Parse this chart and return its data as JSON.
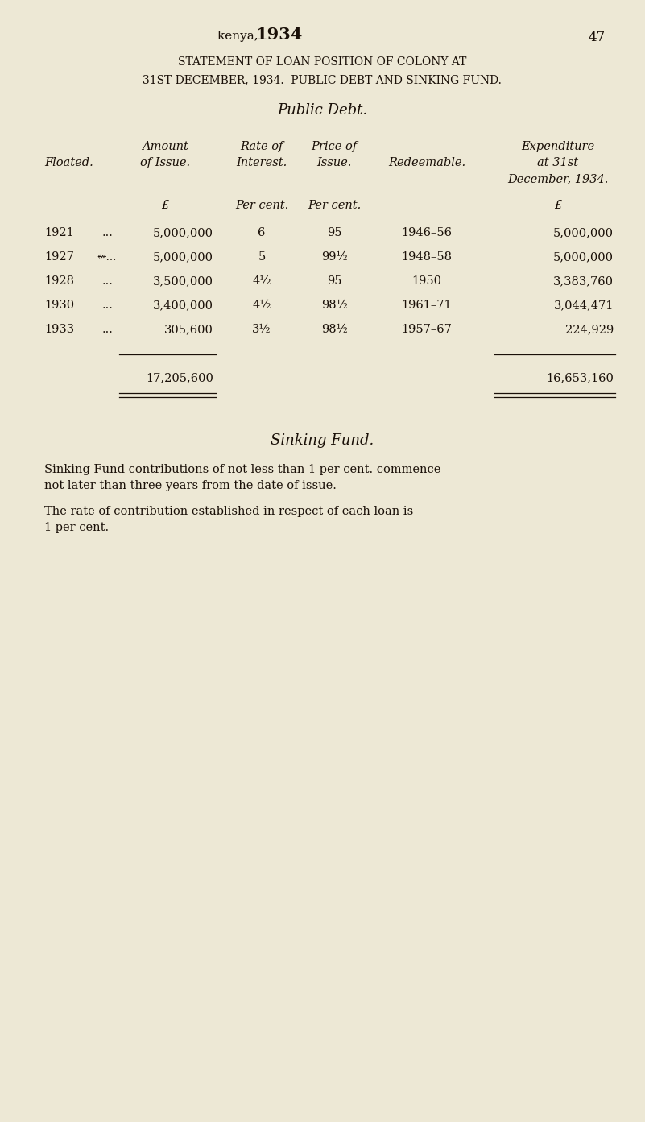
{
  "bg_color": "#ede8d5",
  "text_color": "#1a1008",
  "page_header_normal": "kenya, ",
  "page_header_bold": "1934",
  "page_header_num": "47",
  "title_line1": "Statement of Loan Position of Colony at",
  "title_line2": "31st December, 1934.  Public Debt and Sinking Fund.",
  "subtitle": "Public Debt.",
  "col_floated_label": "Floated.",
  "col_amount_label1": "Amount",
  "col_amount_label2": "of Issue.",
  "col_rate_label1": "Rate of",
  "col_rate_label2": "Interest.",
  "col_price_label1": "Price of",
  "col_price_label2": "Issue.",
  "col_redeemable_label": "Redeemable.",
  "col_exp_label1": "Expenditure",
  "col_exp_label2": "at 31st",
  "col_exp_label3": "December, 1934.",
  "unit_amount": "£",
  "unit_rate": "Per cent.",
  "unit_price": "Per cent.",
  "unit_exp": "£",
  "rows": [
    {
      "year": "1921",
      "dots": "...",
      "amount": "5,000,000",
      "rate": "6",
      "price": "95",
      "redeemable": "1946–56",
      "expenditure": "5,000,000"
    },
    {
      "year": "1927",
      "dots": "⇜...",
      "amount": "5,000,000",
      "rate": "5",
      "price": "99½",
      "redeemable": "1948–58",
      "expenditure": "5,000,000"
    },
    {
      "year": "1928",
      "dots": "...",
      "amount": "3,500,000",
      "rate": "4½",
      "price": "95",
      "redeemable": "1950",
      "expenditure": "3,383,760"
    },
    {
      "year": "1930",
      "dots": "...",
      "amount": "3,400,000",
      "rate": "4½",
      "price": "98½",
      "redeemable": "1961–71",
      "expenditure": "3,044,471"
    },
    {
      "year": "1933",
      "dots": "...",
      "amount": "305,600",
      "rate": "3½",
      "price": "98½",
      "redeemable": "1957–67",
      "expenditure": "224,929"
    }
  ],
  "total_amount": "17,205,600",
  "total_expenditure": "16,653,160",
  "sinking_title": "Sinking Fund.",
  "sinking_para1_line1": "Sinking Fund contributions of not less than 1 per cent. commence",
  "sinking_para1_line2": "not later than three years from the date of issue.",
  "sinking_para2_line1": "The rate of contribution established in respect of each loan is",
  "sinking_para2_line2": "1 per cent."
}
